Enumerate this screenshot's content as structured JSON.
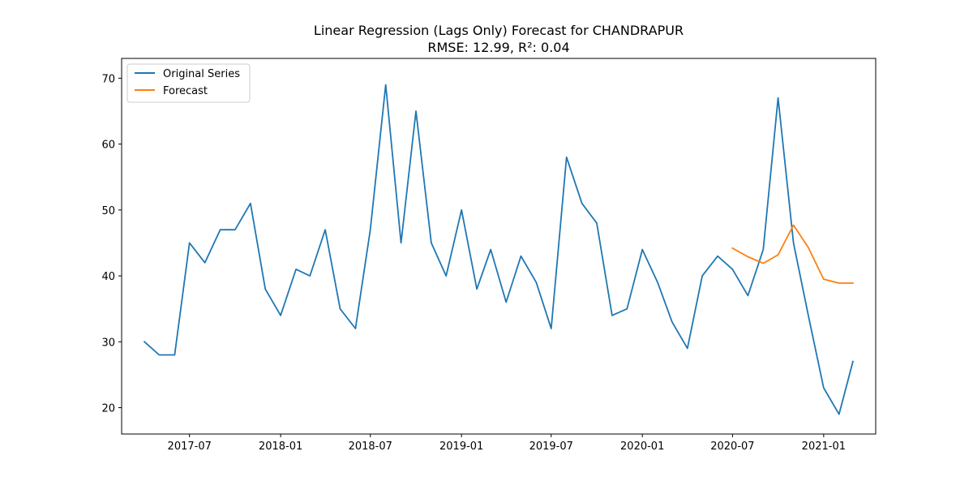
{
  "chart_data": {
    "type": "line",
    "title": "Linear Regression (Lags Only) Forecast for CHANDRAPUR",
    "subtitle": "RMSE: 12.99, R²: 0.04",
    "xlabel": "",
    "ylabel": "",
    "x_tick_labels": [
      "2017-07",
      "2018-01",
      "2018-07",
      "2019-01",
      "2019-07",
      "2020-01",
      "2020-07",
      "2021-01"
    ],
    "y_ticks": [
      20,
      30,
      40,
      50,
      60,
      70
    ],
    "ylim": [
      16.0,
      73.0
    ],
    "xlim": [
      "2017-02-14",
      "2021-04-16"
    ],
    "grid": false,
    "legend_position": "top-left",
    "series": [
      {
        "name": "Original Series",
        "color": "#1f77b4",
        "x": [
          "2017-04-01",
          "2017-05-01",
          "2017-06-01",
          "2017-07-01",
          "2017-08-01",
          "2017-09-01",
          "2017-10-01",
          "2017-11-01",
          "2017-12-01",
          "2018-01-01",
          "2018-02-01",
          "2018-03-01",
          "2018-04-01",
          "2018-05-01",
          "2018-06-01",
          "2018-07-01",
          "2018-08-01",
          "2018-09-01",
          "2018-10-01",
          "2018-11-01",
          "2018-12-01",
          "2019-01-01",
          "2019-02-01",
          "2019-03-01",
          "2019-04-01",
          "2019-05-01",
          "2019-06-01",
          "2019-07-01",
          "2019-08-01",
          "2019-09-01",
          "2019-10-01",
          "2019-11-01",
          "2019-12-01",
          "2020-01-01",
          "2020-02-01",
          "2020-03-01",
          "2020-04-01",
          "2020-05-01",
          "2020-06-01",
          "2020-07-01",
          "2020-08-01",
          "2020-09-01",
          "2020-10-01",
          "2020-11-01",
          "2020-12-01",
          "2021-01-01",
          "2021-02-01",
          "2021-03-01"
        ],
        "y": [
          30,
          28,
          28,
          45,
          42,
          47,
          47,
          51,
          38,
          34,
          41,
          40,
          47,
          35,
          32,
          47,
          69,
          45,
          65,
          45,
          40,
          50,
          38,
          44,
          36,
          43,
          39,
          32,
          58,
          51,
          48,
          34,
          35,
          44,
          39,
          33,
          29,
          40,
          43,
          41,
          37,
          44,
          67,
          45,
          34,
          23,
          19,
          27
        ]
      },
      {
        "name": "Forecast",
        "color": "#ff7f0e",
        "x": [
          "2020-07-01",
          "2020-08-01",
          "2020-09-01",
          "2020-10-01",
          "2020-11-01",
          "2020-12-01",
          "2021-01-01",
          "2021-02-01",
          "2021-03-01"
        ],
        "y": [
          44.2,
          42.9,
          41.9,
          43.2,
          47.7,
          44.3,
          39.5,
          38.9,
          38.9
        ]
      }
    ]
  }
}
